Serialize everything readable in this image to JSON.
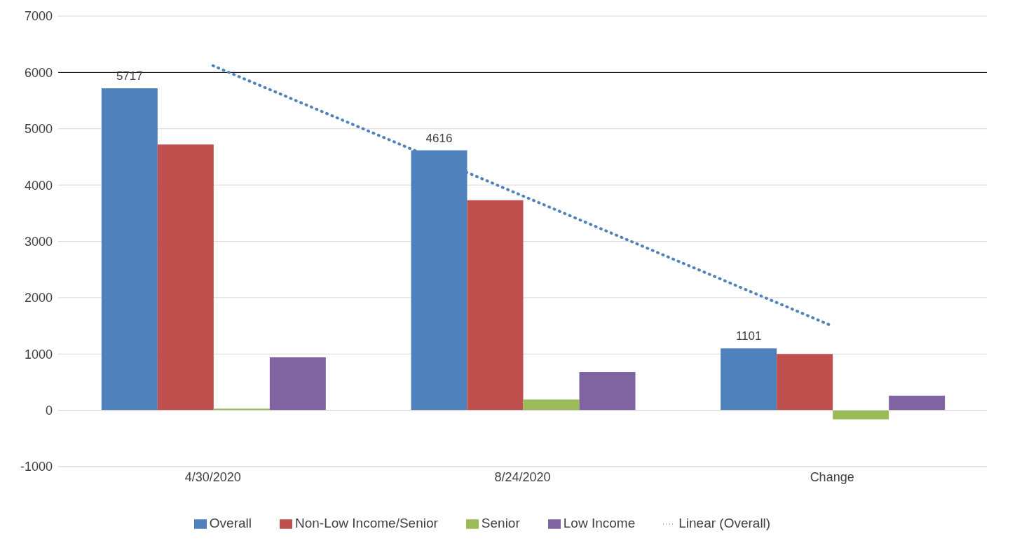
{
  "chart_data": {
    "type": "bar",
    "categories": [
      "4/30/2020",
      "8/24/2020",
      "Change"
    ],
    "series": [
      {
        "name": "Overall",
        "color": "#4f81bd",
        "values": [
          5717,
          4616,
          1101
        ],
        "value_labels": [
          "5717",
          "4616",
          "1101"
        ]
      },
      {
        "name": "Non-Low Income/Senior",
        "color": "#c0504d",
        "values": [
          4720,
          3730,
          1000
        ]
      },
      {
        "name": "Senior",
        "color": "#9bbb59",
        "values": [
          30,
          190,
          -160
        ]
      },
      {
        "name": "Low Income",
        "color": "#8064a2",
        "values": [
          940,
          680,
          260
        ]
      },
      {
        "name": "Linear (Overall)",
        "type": "line",
        "color": "#4f81bd",
        "line_style": "dotted",
        "marker": "none",
        "x": [
          "4/30/2020",
          "8/24/2020",
          "Change"
        ],
        "values": [
          6120,
          3810,
          1500
        ]
      }
    ],
    "ylim": [
      -1000,
      7000
    ],
    "yticks": [
      -1000,
      0,
      1000,
      2000,
      3000,
      4000,
      5000,
      6000,
      7000
    ],
    "ref_lines": [
      {
        "axis": "y",
        "value": 6000,
        "color": "#000000"
      }
    ],
    "grid": "y",
    "legend": "bottom"
  }
}
